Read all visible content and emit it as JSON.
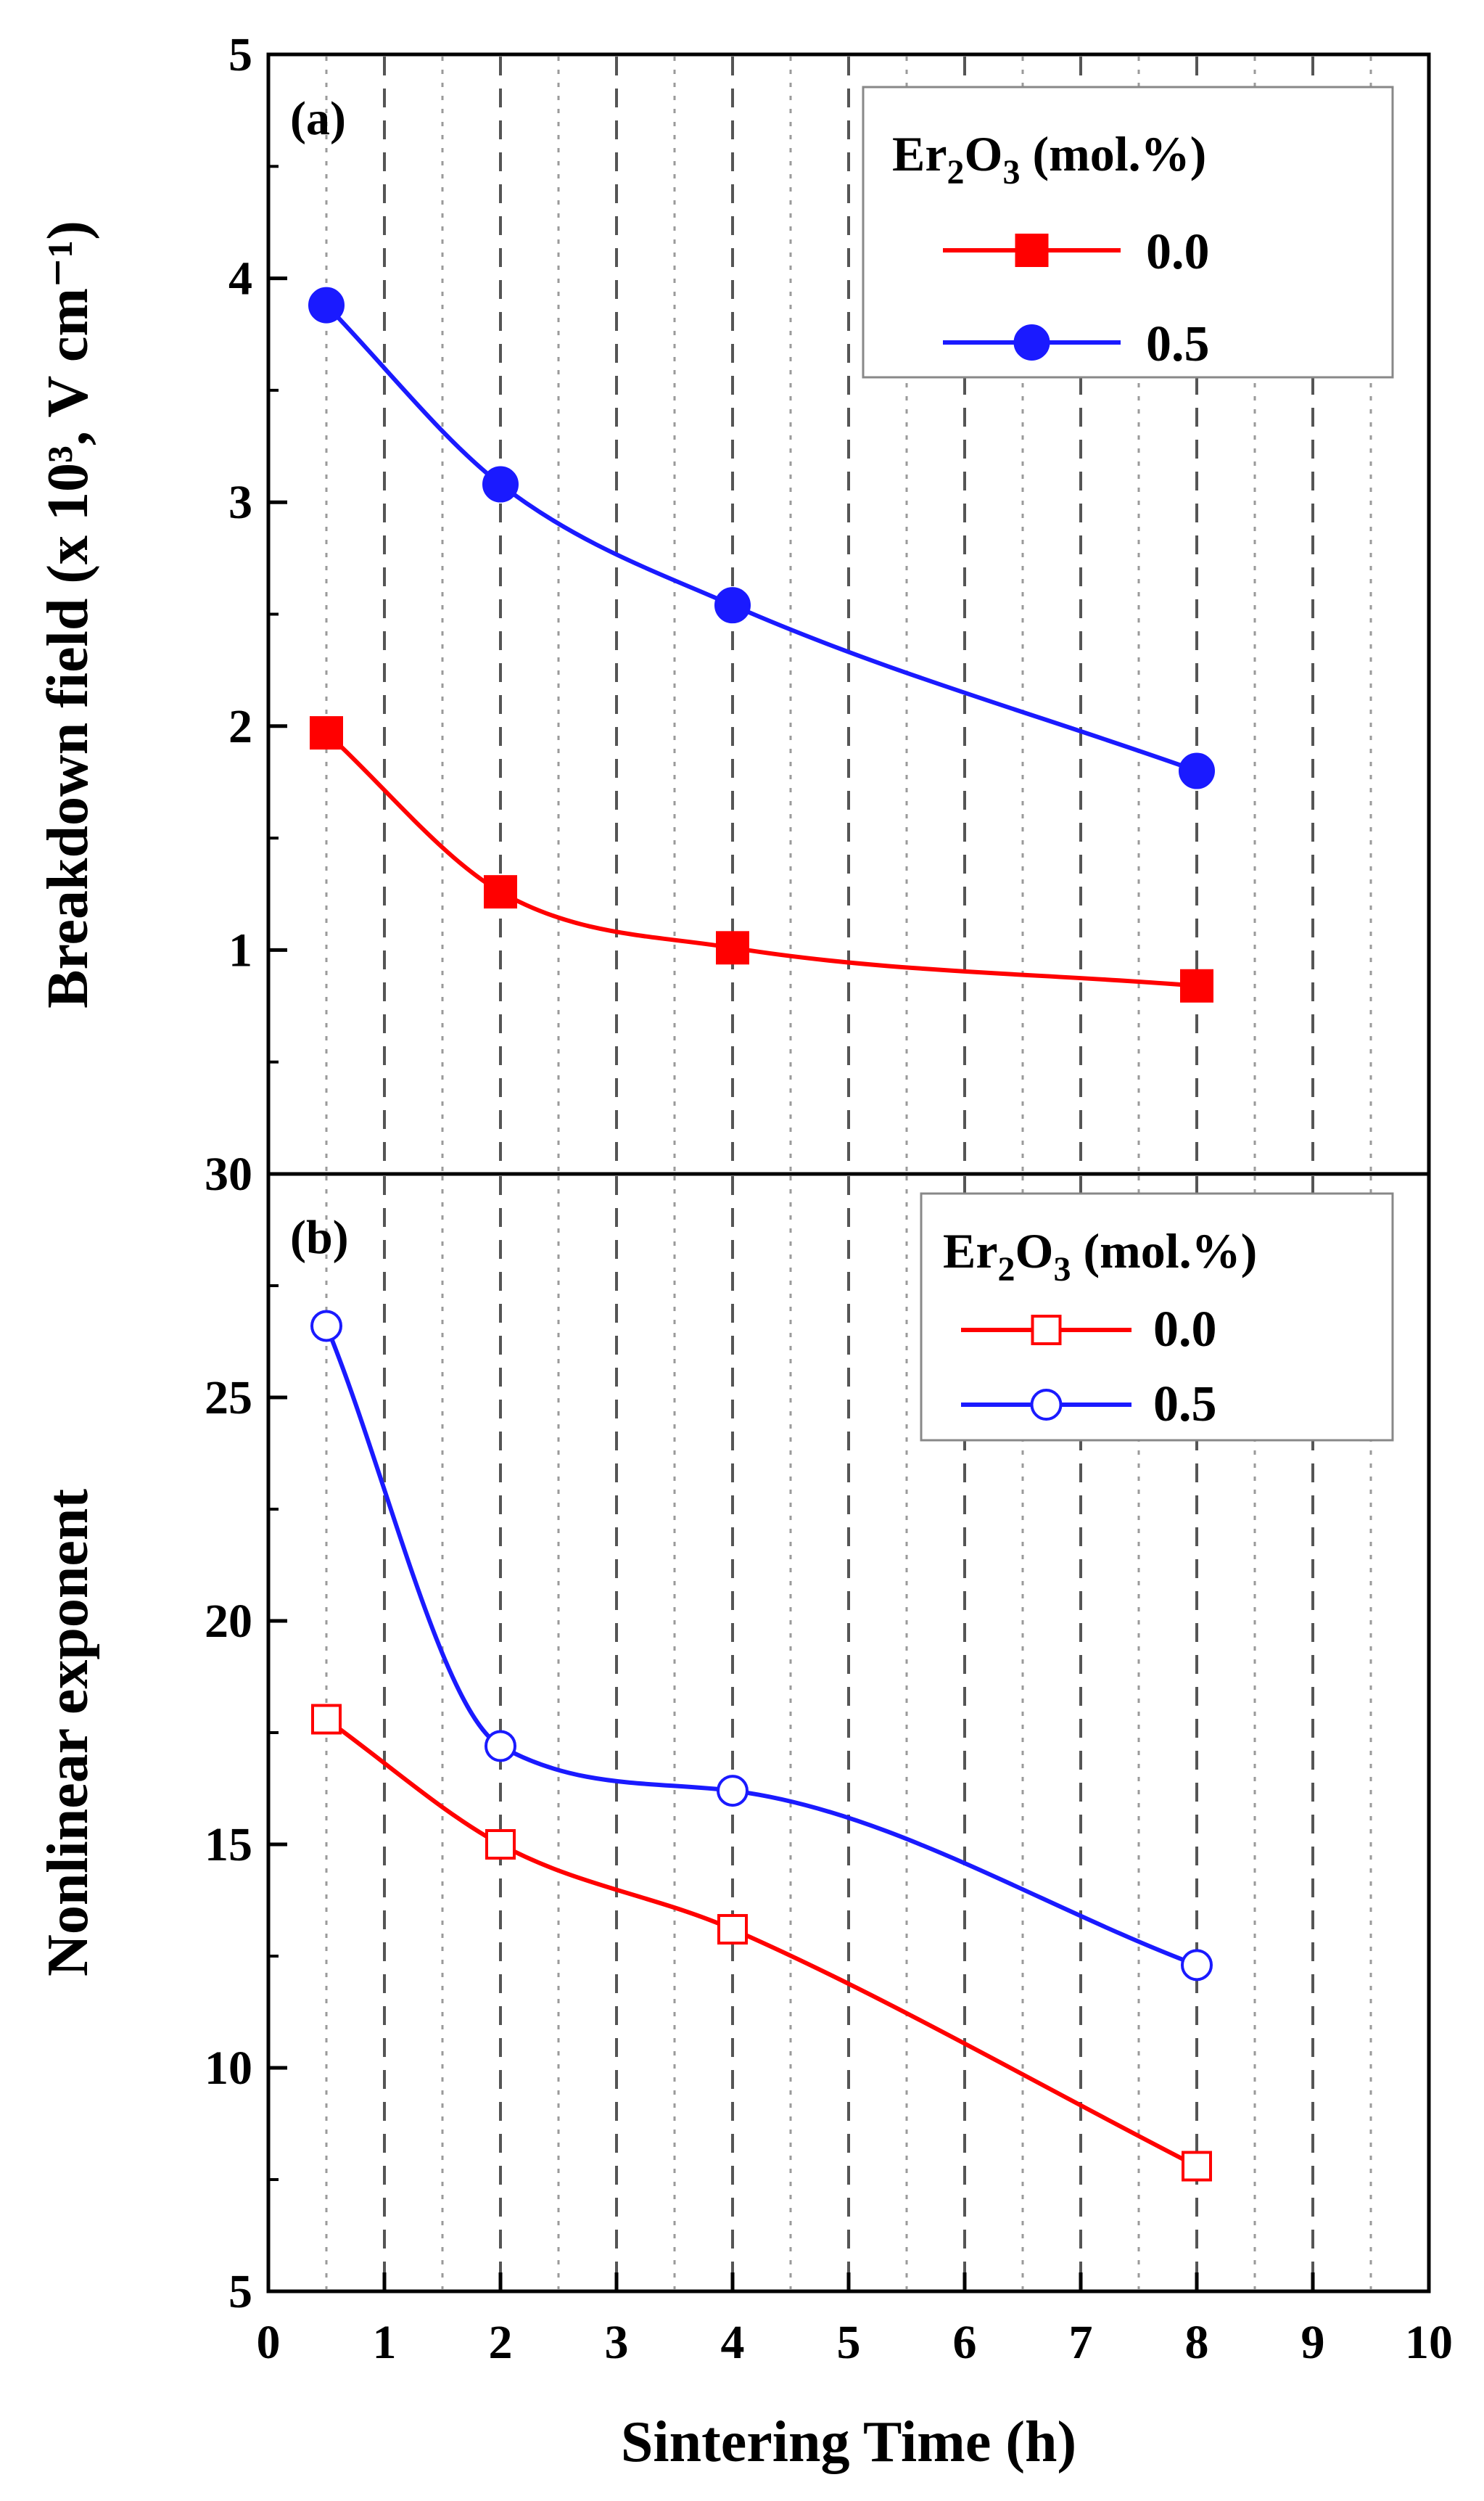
{
  "colors": {
    "red": "#ff0000",
    "blue": "#1a1aff",
    "axis": "#000000",
    "grid_major": "#555555",
    "grid_minor": "#9a9a9a"
  },
  "xaxis": {
    "label": "Sintering Time (h)",
    "range": [
      0,
      10
    ],
    "ticks": [
      "0",
      "1",
      "2",
      "3",
      "4",
      "5",
      "6",
      "7",
      "8",
      "9",
      "10"
    ]
  },
  "chart_data": [
    {
      "type": "line",
      "panel_label": "(a)",
      "ylabel": "Breakdown field (x 10³, V cm⁻¹)",
      "ylim": [
        0,
        5
      ],
      "yticks": [
        "1",
        "2",
        "3",
        "4",
        "5"
      ],
      "x": [
        0.5,
        2,
        4,
        8
      ],
      "legend": {
        "title_prefix": "Er",
        "title_sub1": "2",
        "title_mid": "O",
        "title_sub2": "3",
        "title_suffix": " (mol.%)"
      },
      "series": [
        {
          "name": "0.0",
          "marker": "filled-square",
          "color": "red",
          "values": [
            1.97,
            1.26,
            1.01,
            0.84
          ]
        },
        {
          "name": "0.5",
          "marker": "filled-circle",
          "color": "blue",
          "values": [
            3.88,
            3.08,
            2.54,
            1.8
          ]
        }
      ]
    },
    {
      "type": "line",
      "panel_label": "(b)",
      "ylabel": "Nonlinear exponent",
      "ylim": [
        5,
        30
      ],
      "yticks": [
        "5",
        "10",
        "15",
        "20",
        "25",
        "30"
      ],
      "x": [
        0.5,
        2,
        4,
        8
      ],
      "legend": {
        "title_prefix": "Er",
        "title_sub1": "2",
        "title_mid": "O",
        "title_sub2": "3",
        "title_suffix": " (mol.%)"
      },
      "series": [
        {
          "name": "0.0",
          "marker": "open-square",
          "color": "red",
          "values": [
            17.8,
            15.0,
            13.1,
            7.8
          ]
        },
        {
          "name": "0.5",
          "marker": "open-circle",
          "color": "blue",
          "values": [
            26.6,
            17.2,
            16.2,
            12.3
          ]
        }
      ]
    }
  ]
}
